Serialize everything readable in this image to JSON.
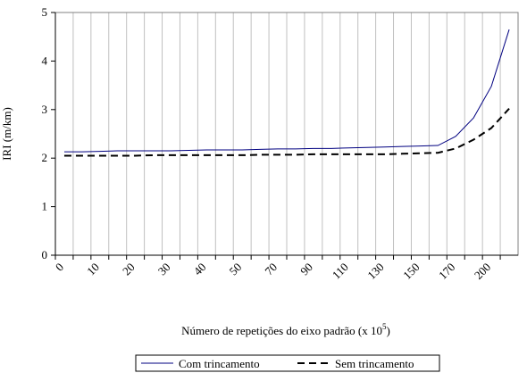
{
  "chart_data": {
    "type": "line",
    "x_label": "Número de repetições do eixo padrão (x 10",
    "x_label_sup": "5",
    "x_label_end": ")",
    "y_label": "IRI (m/km)",
    "categories": [
      "0",
      null,
      "10",
      null,
      "20",
      null,
      "30",
      null,
      "40",
      null,
      "50",
      null,
      "70",
      null,
      "90",
      null,
      "110",
      null,
      "130",
      null,
      "150",
      null,
      "170",
      null,
      "200",
      null
    ],
    "series": [
      {
        "name": "Com trincamento",
        "color": "#000080",
        "dash": "none",
        "values": [
          2.13,
          2.13,
          2.14,
          2.15,
          2.15,
          2.15,
          2.15,
          2.16,
          2.17,
          2.17,
          2.17,
          2.18,
          2.19,
          2.19,
          2.2,
          2.2,
          2.21,
          2.22,
          2.23,
          2.24,
          2.25,
          2.26,
          2.45,
          2.83,
          3.48,
          4.65
        ]
      },
      {
        "name": "Sem trincamento",
        "color": "#000000",
        "dash": "8 5",
        "values": [
          2.05,
          2.05,
          2.05,
          2.05,
          2.05,
          2.06,
          2.06,
          2.06,
          2.06,
          2.06,
          2.06,
          2.07,
          2.07,
          2.07,
          2.08,
          2.08,
          2.08,
          2.08,
          2.08,
          2.09,
          2.1,
          2.11,
          2.2,
          2.38,
          2.62,
          3.02
        ]
      }
    ],
    "ylim": [
      0,
      5
    ],
    "yticks": [
      0,
      1,
      2,
      3,
      4,
      5
    ],
    "grid": "x",
    "legend": "bottom"
  }
}
